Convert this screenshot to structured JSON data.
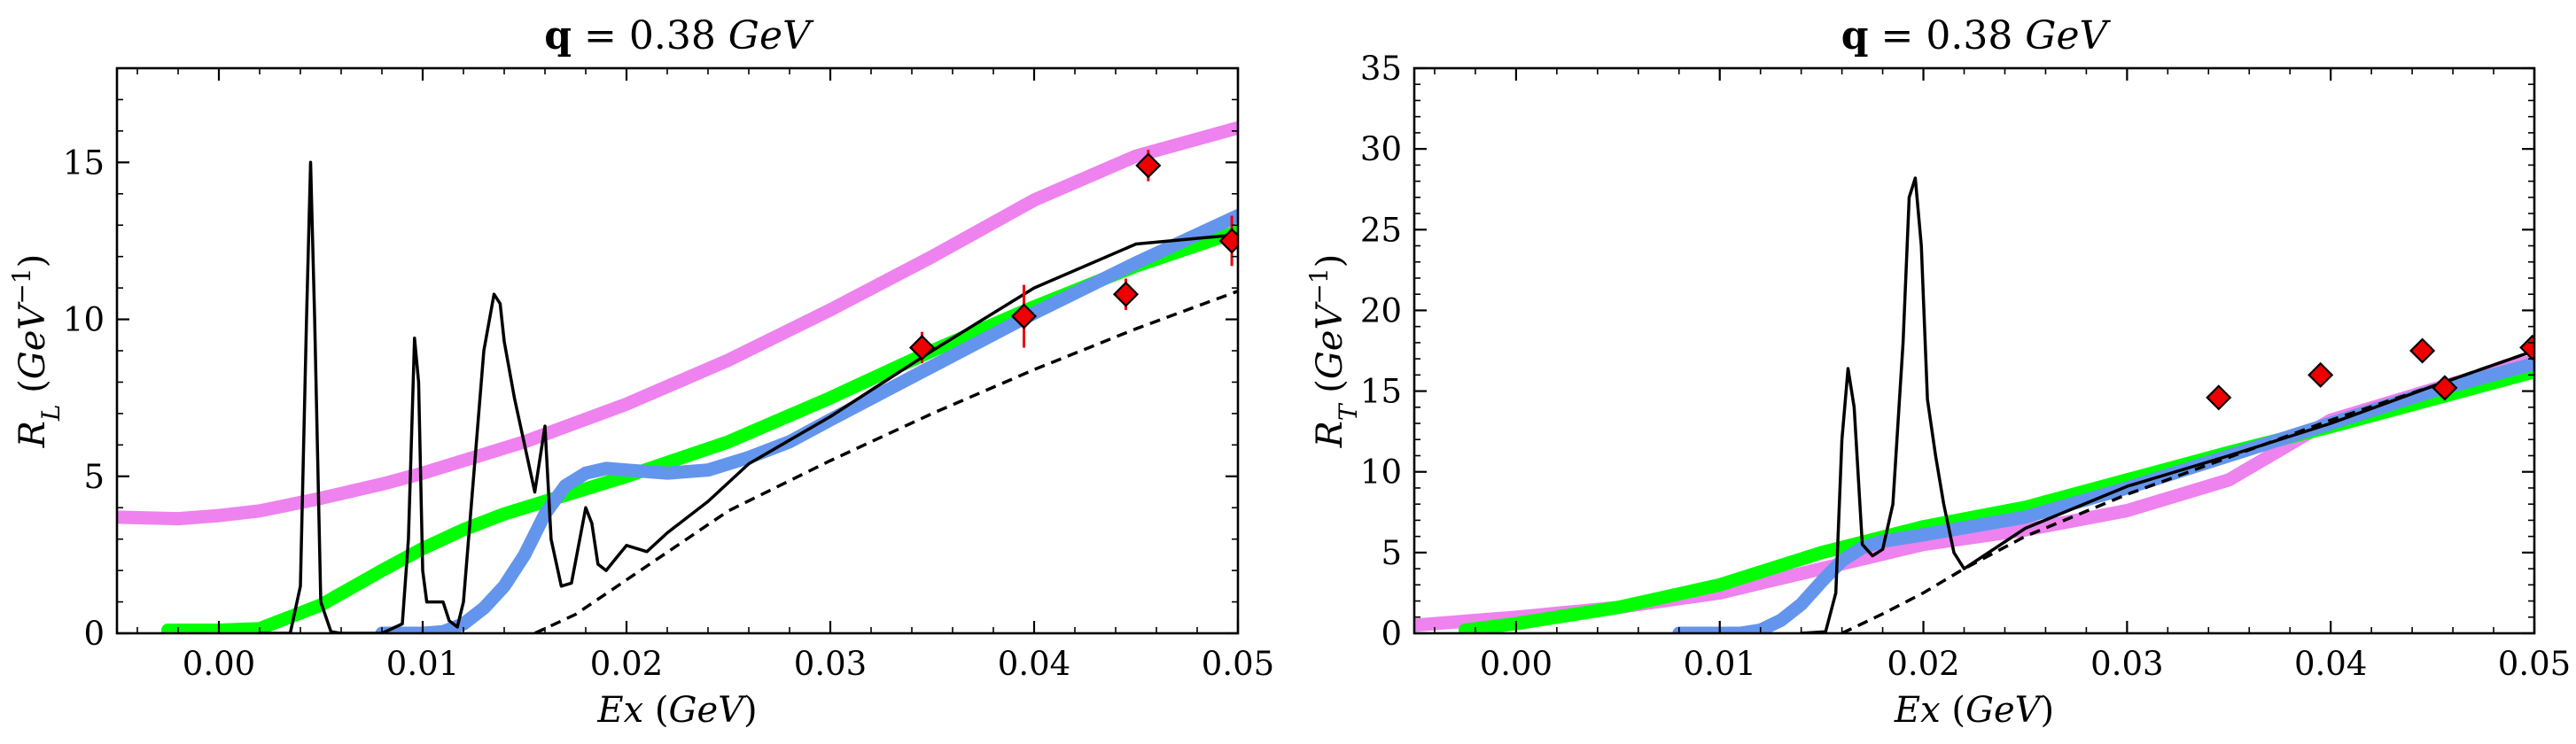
{
  "chart_data": [
    {
      "type": "line",
      "title_bold": "q",
      "title_rest": " = 0.38 ",
      "title_unit": "GeV",
      "xlabel": "Ex (GeV)",
      "ylabel": "R_L (GeV^-1)",
      "xlim": [
        -0.005,
        0.05
      ],
      "ylim": [
        0,
        18
      ],
      "xticks": [
        0.0,
        0.01,
        0.02,
        0.03,
        0.04,
        0.05
      ],
      "xtick_labels": [
        "0.00",
        "0.01",
        "0.02",
        "0.03",
        "0.04",
        "0.05"
      ],
      "yticks": [
        0,
        5,
        10,
        15
      ],
      "ytick_labels": [
        "0",
        "5",
        "10",
        "15"
      ],
      "grid": false,
      "series": [
        {
          "color": "#ee82ee",
          "style": "thick",
          "x": [
            -0.005,
            -0.002,
            0.0,
            0.002,
            0.005,
            0.008,
            0.01,
            0.012,
            0.015,
            0.02,
            0.025,
            0.03,
            0.035,
            0.04,
            0.045,
            0.05
          ],
          "y": [
            3.7,
            3.65,
            3.75,
            3.9,
            4.3,
            4.75,
            5.1,
            5.5,
            6.1,
            7.3,
            8.7,
            10.3,
            12.0,
            13.8,
            15.2,
            16.1
          ]
        },
        {
          "color": "#00ff00",
          "style": "thick",
          "x": [
            -0.0025,
            0.0,
            0.002,
            0.005,
            0.008,
            0.01,
            0.012,
            0.014,
            0.016,
            0.02,
            0.025,
            0.03,
            0.035,
            0.04,
            0.045,
            0.05
          ],
          "y": [
            0.1,
            0.1,
            0.15,
            0.9,
            2.0,
            2.7,
            3.3,
            3.8,
            4.2,
            5.0,
            6.1,
            7.5,
            9.0,
            10.4,
            11.7,
            12.8
          ]
        },
        {
          "color": "#6495ed",
          "style": "thick",
          "x": [
            0.008,
            0.01,
            0.011,
            0.012,
            0.013,
            0.014,
            0.015,
            0.016,
            0.017,
            0.018,
            0.019,
            0.02,
            0.022,
            0.024,
            0.026,
            0.028,
            0.03,
            0.035,
            0.04,
            0.045,
            0.05
          ],
          "y": [
            0.0,
            0.0,
            0.05,
            0.3,
            0.8,
            1.5,
            2.5,
            3.8,
            4.7,
            5.1,
            5.25,
            5.2,
            5.1,
            5.2,
            5.6,
            6.1,
            6.8,
            8.5,
            10.2,
            11.8,
            13.3
          ]
        },
        {
          "color": "#000000",
          "style": "thin",
          "x": [
            0.002,
            0.0035,
            0.004,
            0.0043,
            0.0045,
            0.0047,
            0.005,
            0.0055,
            0.006,
            0.008,
            0.009,
            0.0093,
            0.0096,
            0.0098,
            0.01,
            0.0102,
            0.0105,
            0.011,
            0.0113,
            0.0117,
            0.012,
            0.0125,
            0.013,
            0.0135,
            0.0138,
            0.014,
            0.0145,
            0.015,
            0.0155,
            0.016,
            0.0163,
            0.0168,
            0.0173,
            0.018,
            0.0183,
            0.0186,
            0.019,
            0.0195,
            0.02,
            0.021,
            0.022,
            0.024,
            0.026,
            0.03,
            0.035,
            0.04,
            0.045,
            0.05
          ],
          "y": [
            0.0,
            0.0,
            1.5,
            10.0,
            15.0,
            10.0,
            1.0,
            0.05,
            0.0,
            0.0,
            0.3,
            3.0,
            9.4,
            8.0,
            2.0,
            1.0,
            1.0,
            1.0,
            0.4,
            0.2,
            1.0,
            5.0,
            9.0,
            10.8,
            10.5,
            9.3,
            7.5,
            6.0,
            4.5,
            6.6,
            3.0,
            1.5,
            1.6,
            4.0,
            3.5,
            2.2,
            2.0,
            2.4,
            2.8,
            2.6,
            3.2,
            4.2,
            5.4,
            6.9,
            9.0,
            11.0,
            12.4,
            12.7
          ]
        },
        {
          "color": "#000000",
          "style": "dashed",
          "x": [
            0.0155,
            0.0175,
            0.02,
            0.025,
            0.03,
            0.035,
            0.04,
            0.045,
            0.05
          ],
          "y": [
            0.0,
            0.6,
            1.7,
            3.9,
            5.5,
            7.0,
            8.4,
            9.7,
            10.9
          ]
        }
      ],
      "points": {
        "color": "#ee0000",
        "x": [
          0.0345,
          0.0395,
          0.0445,
          0.0456,
          0.0497
        ],
        "y": [
          9.1,
          10.1,
          10.8,
          14.9,
          12.5
        ],
        "err": [
          0.5,
          1.0,
          0.5,
          0.5,
          0.8
        ]
      }
    },
    {
      "type": "line",
      "title_bold": "q",
      "title_rest": " = 0.38 ",
      "title_unit": "GeV",
      "xlabel": "Ex (GeV)",
      "ylabel": "R_T (GeV^-1)",
      "xlim": [
        -0.005,
        0.05
      ],
      "ylim": [
        0,
        35
      ],
      "xticks": [
        0.0,
        0.01,
        0.02,
        0.03,
        0.04,
        0.05
      ],
      "xtick_labels": [
        "0.00",
        "0.01",
        "0.02",
        "0.03",
        "0.04",
        "0.05"
      ],
      "yticks": [
        0,
        5,
        10,
        15,
        20,
        25,
        30,
        35
      ],
      "ytick_labels": [
        "0",
        "5",
        "10",
        "15",
        "20",
        "25",
        "30",
        "35"
      ],
      "grid": false,
      "series": [
        {
          "color": "#ee82ee",
          "style": "thick",
          "x": [
            -0.005,
            0.0,
            0.005,
            0.01,
            0.015,
            0.02,
            0.025,
            0.03,
            0.035,
            0.04,
            0.045,
            0.05
          ],
          "y": [
            0.5,
            1.0,
            1.6,
            2.5,
            4.0,
            5.5,
            6.4,
            7.6,
            9.5,
            13.2,
            15.1,
            16.9
          ]
        },
        {
          "color": "#00ff00",
          "style": "thick",
          "x": [
            -0.0025,
            0.0,
            0.005,
            0.01,
            0.015,
            0.02,
            0.025,
            0.03,
            0.035,
            0.04,
            0.045,
            0.05
          ],
          "y": [
            0.2,
            0.6,
            1.6,
            3.0,
            5.0,
            6.6,
            7.8,
            9.5,
            11.2,
            12.8,
            14.5,
            16.2
          ]
        },
        {
          "color": "#6495ed",
          "style": "thick",
          "x": [
            0.008,
            0.011,
            0.012,
            0.013,
            0.014,
            0.015,
            0.016,
            0.017,
            0.018,
            0.02,
            0.025,
            0.03,
            0.035,
            0.04,
            0.045,
            0.05
          ],
          "y": [
            0.0,
            0.0,
            0.2,
            0.8,
            1.8,
            3.2,
            4.5,
            5.3,
            5.7,
            6.1,
            7.2,
            9.0,
            11.0,
            13.0,
            15.0,
            16.7
          ]
        },
        {
          "color": "#000000",
          "style": "thin",
          "x": [
            0.014,
            0.0152,
            0.0157,
            0.016,
            0.0163,
            0.0166,
            0.017,
            0.0175,
            0.018,
            0.0185,
            0.019,
            0.0193,
            0.0196,
            0.0199,
            0.0202,
            0.0206,
            0.021,
            0.0215,
            0.022,
            0.025,
            0.03,
            0.035,
            0.04,
            0.045,
            0.05
          ],
          "y": [
            0.0,
            0.1,
            2.5,
            12.0,
            16.4,
            14.0,
            5.5,
            4.8,
            5.2,
            8.0,
            18.0,
            27.0,
            28.2,
            24.0,
            14.5,
            11.0,
            8.0,
            5.0,
            4.0,
            6.5,
            9.1,
            11.0,
            13.0,
            15.3,
            17.5
          ]
        },
        {
          "color": "#000000",
          "style": "dashed",
          "x": [
            0.016,
            0.018,
            0.02,
            0.022,
            0.025,
            0.03,
            0.035,
            0.04,
            0.045,
            0.05
          ],
          "y": [
            0.0,
            1.2,
            2.5,
            4.0,
            6.0,
            8.6,
            10.9,
            13.2,
            15.3,
            17.5
          ]
        }
      ],
      "points": {
        "color": "#ee0000",
        "x": [
          0.0345,
          0.0395,
          0.0445,
          0.0456,
          0.0499
        ],
        "y": [
          14.6,
          16.0,
          17.5,
          15.2,
          17.7
        ],
        "err": [
          0.0,
          0.0,
          0.0,
          0.0,
          0.0
        ]
      }
    }
  ]
}
